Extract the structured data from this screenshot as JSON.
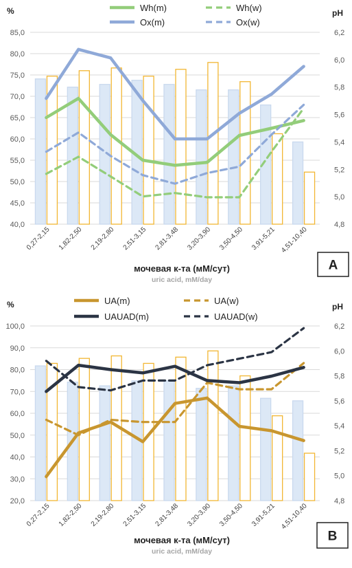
{
  "chart_data": [
    {
      "type": "bar+line",
      "panel_label": "A",
      "categories": [
        "0,27-2,15",
        "1,82-2,50",
        "2,19-2,80",
        "2,51-3,15",
        "2,81-3,48",
        "3,20-3,90",
        "3,50-4,50",
        "3,91-5,21",
        "4,51-10,40"
      ],
      "y_left": {
        "unit": "%",
        "min": 40,
        "max": 85,
        "ticks": [
          "40,0",
          "45,0",
          "50,0",
          "55,0",
          "60,0",
          "65,0",
          "70,0",
          "75,0",
          "80,0",
          "85,0"
        ]
      },
      "y_right": {
        "unit": "pH",
        "min": 4.8,
        "max": 6.2,
        "ticks": [
          "4,8",
          "5,0",
          "5,2",
          "5,4",
          "5,6",
          "5,8",
          "6,0",
          "6,2"
        ]
      },
      "xlabel": "мочевая к-та (мМ/сут)",
      "xlabel_sub": "uric acid, mM/day",
      "grid": true,
      "legend_position": "top",
      "bars": [
        {
          "axis": "right",
          "color": "#dce8f6",
          "stroke": "#c9d9ee",
          "values": [
            5.86,
            5.8,
            5.82,
            5.85,
            5.82,
            5.78,
            5.78,
            5.67,
            5.4
          ]
        },
        {
          "axis": "right",
          "color": "#ffffff",
          "stroke": "#f2b632",
          "values": [
            5.88,
            5.92,
            5.94,
            5.88,
            5.93,
            5.98,
            5.84,
            5.46,
            5.18
          ]
        }
      ],
      "series": [
        {
          "name": "Wh(m)",
          "color": "#93cd7a",
          "dashed": false,
          "width": 4.5,
          "values": [
            65.0,
            69.5,
            61.0,
            55.0,
            53.8,
            54.5,
            60.8,
            62.5,
            64.3
          ]
        },
        {
          "name": "Wh(w)",
          "color": "#93cd7a",
          "dashed": true,
          "width": 3.2,
          "values": [
            51.8,
            55.8,
            51.2,
            46.5,
            47.3,
            46.3,
            46.3,
            57.0,
            67.2
          ]
        },
        {
          "name": "Ox(m)",
          "color": "#8fa9d8",
          "dashed": false,
          "width": 4.5,
          "values": [
            69.5,
            81.0,
            79.0,
            69.0,
            60.0,
            60.0,
            66.0,
            70.5,
            77.0
          ]
        },
        {
          "name": "Ox(w)",
          "color": "#8fa9d8",
          "dashed": true,
          "width": 3.2,
          "values": [
            57.0,
            61.5,
            56.0,
            51.5,
            49.5,
            52.0,
            53.5,
            61.0,
            68.0
          ]
        }
      ]
    },
    {
      "type": "bar+line",
      "panel_label": "B",
      "categories": [
        "0,27-2,15",
        "1,82-2,50",
        "2,19-2,80",
        "2,51-3,15",
        "2,81-3,48",
        "3,20-3,90",
        "3,50-4,50",
        "3,91-5,21",
        "4,51-10,40"
      ],
      "y_left": {
        "unit": "%",
        "min": 20,
        "max": 100,
        "ticks": [
          "20,0",
          "30,0",
          "40,0",
          "50,0",
          "60,0",
          "70,0",
          "80,0",
          "90,0",
          "100,0"
        ]
      },
      "y_right": {
        "unit": "pH",
        "min": 4.8,
        "max": 6.2,
        "ticks": [
          "4,8",
          "5,0",
          "5,2",
          "5,4",
          "5,6",
          "5,8",
          "6,0",
          "6,2"
        ]
      },
      "xlabel": "мочевая к-та (мМ/сут)",
      "xlabel_sub": "uric acid, mM/day",
      "grid": true,
      "legend_position": "top",
      "bars": [
        {
          "axis": "right",
          "color": "#dce8f6",
          "stroke": "#c9d9ee",
          "values": [
            5.88,
            5.75,
            5.72,
            5.76,
            5.76,
            5.7,
            5.72,
            5.62,
            5.6
          ]
        },
        {
          "axis": "right",
          "color": "#ffffff",
          "stroke": "#f2b632",
          "values": [
            5.9,
            5.94,
            5.96,
            5.9,
            5.95,
            6.0,
            5.8,
            5.48,
            5.18
          ]
        }
      ],
      "series": [
        {
          "name": "UA(m)",
          "color": "#c8962f",
          "dashed": false,
          "width": 4.5,
          "values": [
            31.0,
            51.0,
            56.0,
            47.0,
            64.5,
            67.0,
            54.0,
            52.0,
            47.5
          ]
        },
        {
          "name": "UA(w)",
          "color": "#c8962f",
          "dashed": true,
          "width": 3.2,
          "values": [
            57.0,
            50.0,
            57.0,
            56.0,
            56.0,
            74.0,
            71.0,
            71.0,
            83.0
          ]
        },
        {
          "name": "UAUAD(m)",
          "color": "#2b3444",
          "dashed": false,
          "width": 4.5,
          "values": [
            70.0,
            82.0,
            80.0,
            78.5,
            81.5,
            75.0,
            74.0,
            77.0,
            81.0
          ]
        },
        {
          "name": "UAUAD(w)",
          "color": "#2b3444",
          "dashed": true,
          "width": 3.2,
          "values": [
            84.0,
            72.0,
            70.5,
            75.0,
            75.0,
            82.0,
            85.0,
            88.0,
            99.0
          ]
        }
      ]
    }
  ]
}
